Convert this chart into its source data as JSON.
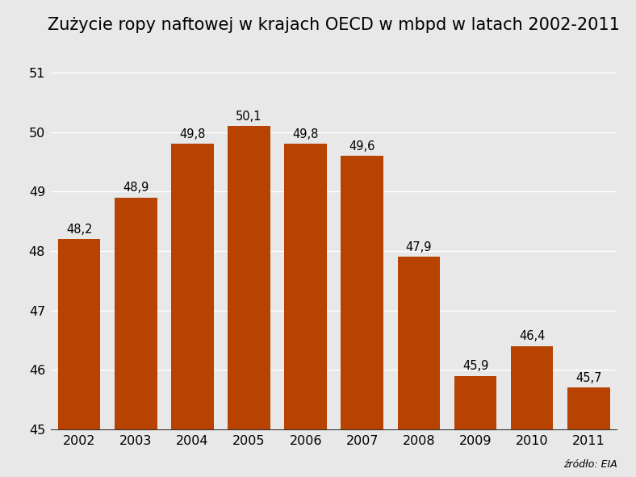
{
  "title": "Zużycie ropy naftowej w krajach OECD w mbpd w latach 2002-2011",
  "years": [
    2002,
    2003,
    2004,
    2005,
    2006,
    2007,
    2008,
    2009,
    2010,
    2011
  ],
  "values": [
    48.2,
    48.9,
    49.8,
    50.1,
    49.8,
    49.6,
    47.9,
    45.9,
    46.4,
    45.7
  ],
  "bar_color": "#b84200",
  "bg_color": "#e8e8e8",
  "grid_color": "#ffffff",
  "ylim_min": 45,
  "ylim_max": 51,
  "yticks": [
    45,
    46,
    47,
    48,
    49,
    50,
    51
  ],
  "source_text": "źródło: EIA",
  "title_fontsize": 15,
  "label_fontsize": 10.5,
  "tick_fontsize": 11.5,
  "source_fontsize": 9
}
